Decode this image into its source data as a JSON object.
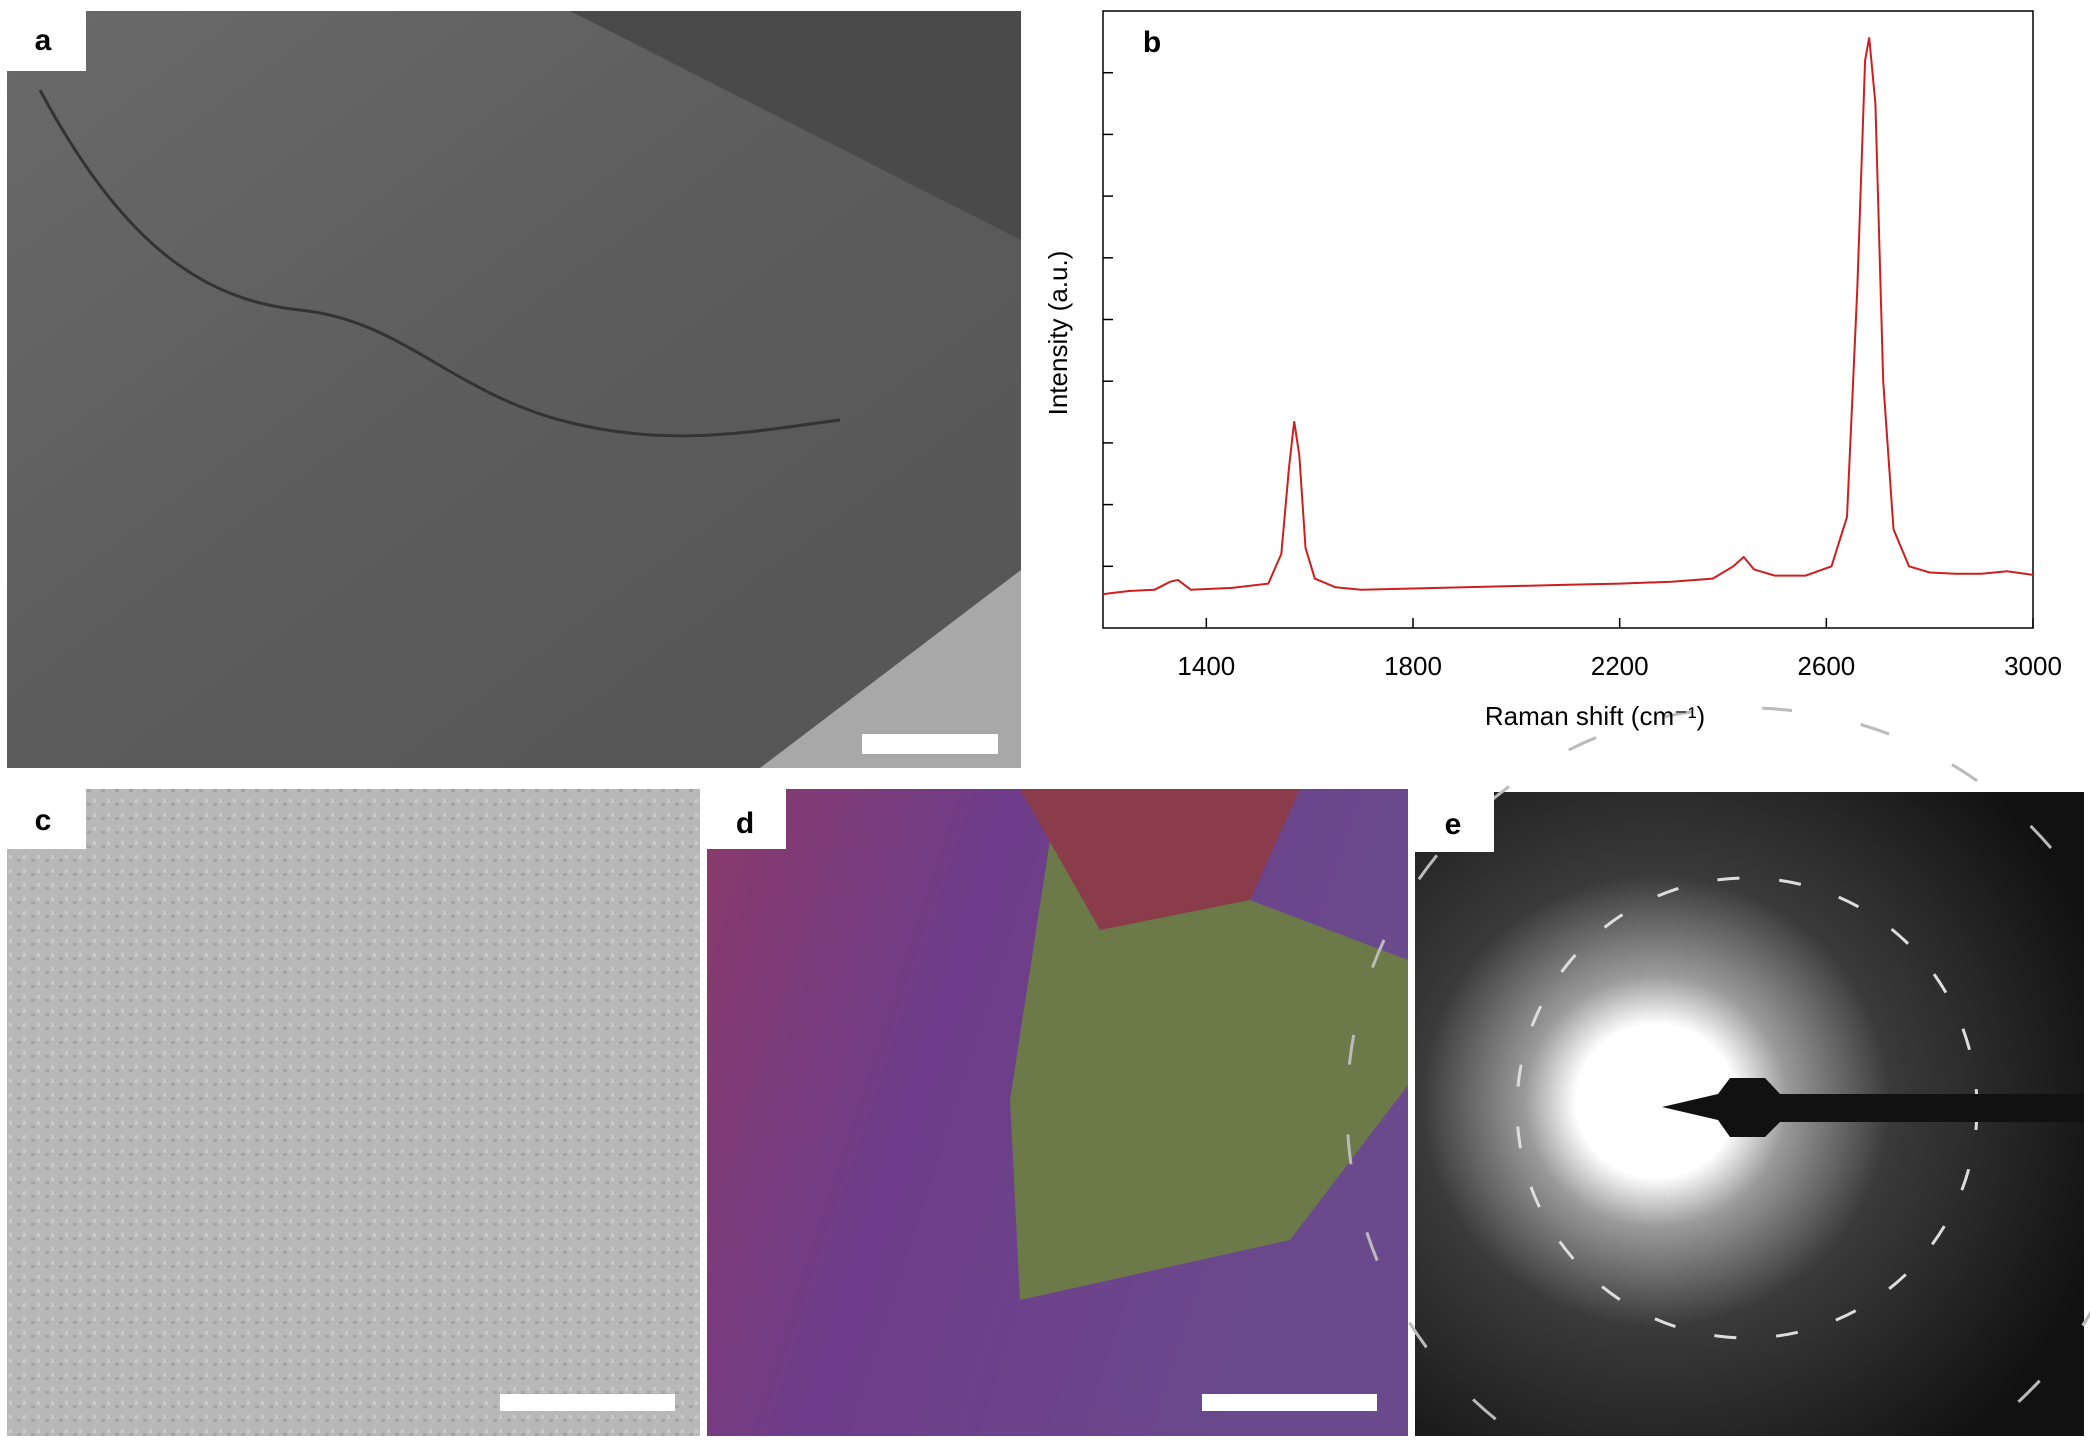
{
  "panel_labels": [
    "a",
    "b",
    "c",
    "d",
    "e"
  ],
  "chart_data": {
    "type": "line",
    "x_label": "Raman shift (cm⁻¹)",
    "y_label": "Intensity (a.u.)",
    "x": [
      1200,
      1250,
      1300,
      1330,
      1345,
      1370,
      1450,
      1520,
      1545,
      1560,
      1570,
      1580,
      1592,
      1610,
      1650,
      1700,
      1800,
      1900,
      2000,
      2100,
      2200,
      2300,
      2380,
      2420,
      2440,
      2460,
      2500,
      2560,
      2610,
      2640,
      2660,
      2675,
      2683,
      2695,
      2710,
      2730,
      2760,
      2800,
      2850,
      2900,
      2950,
      3000
    ],
    "values": [
      0.55,
      0.6,
      0.62,
      0.75,
      0.78,
      0.62,
      0.65,
      0.72,
      1.2,
      2.6,
      3.35,
      2.8,
      1.3,
      0.8,
      0.66,
      0.62,
      0.64,
      0.66,
      0.68,
      0.7,
      0.72,
      0.75,
      0.8,
      1.0,
      1.15,
      0.95,
      0.85,
      0.85,
      1.0,
      1.8,
      5.5,
      9.2,
      9.57,
      8.5,
      4.0,
      1.6,
      1.0,
      0.9,
      0.88,
      0.88,
      0.92,
      0.86
    ],
    "color": "#cc1f1f",
    "xlim": [
      1200,
      3000
    ],
    "xticks": [
      1400,
      1800,
      2200,
      2600,
      3000
    ],
    "ylim": [
      0,
      10
    ]
  }
}
